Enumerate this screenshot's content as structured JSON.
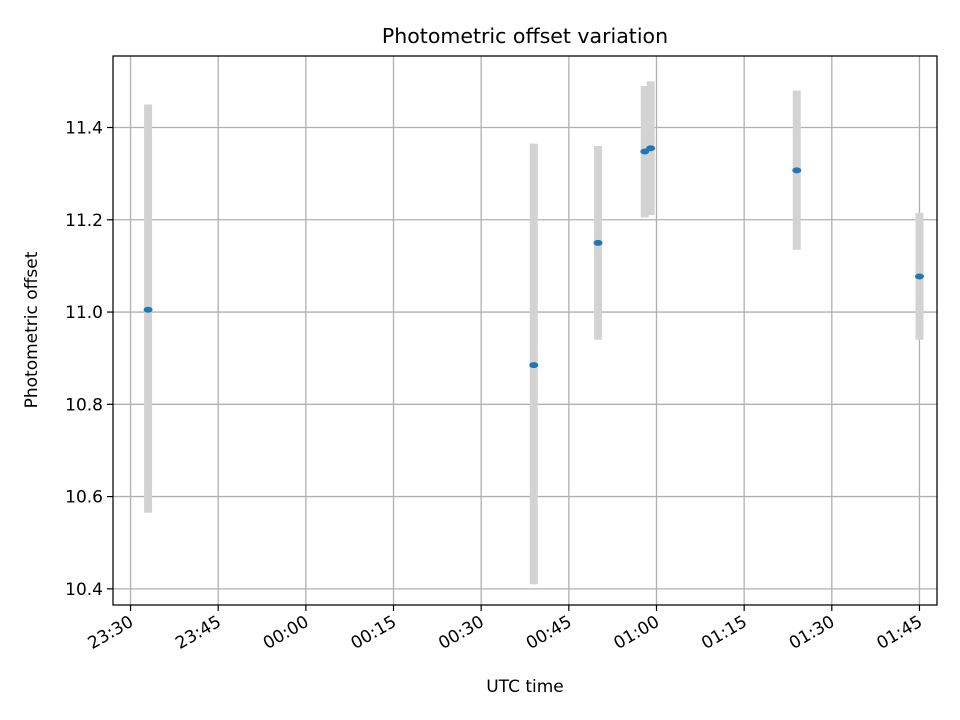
{
  "chart_data": {
    "type": "scatter",
    "title": "Photometric offset variation",
    "xlabel": "UTC time",
    "ylabel": "Photometric offset",
    "x_axis": "time",
    "xlim": [
      "23:27",
      "01:48"
    ],
    "ylim": [
      10.365,
      11.555
    ],
    "x_ticks": [
      "23:30",
      "23:45",
      "00:00",
      "00:15",
      "00:30",
      "00:45",
      "01:00",
      "01:15",
      "01:30",
      "01:45"
    ],
    "y_ticks": [
      10.4,
      10.6,
      10.8,
      11.0,
      11.2,
      11.4
    ],
    "y_tick_labels": [
      "10.4",
      "10.6",
      "10.8",
      "11.0",
      "11.2",
      "11.4"
    ],
    "grid": true,
    "colors": {
      "point": "#1f77b4",
      "errorbar": "#d3d3d3",
      "grid": "#b0b0b0"
    },
    "points": [
      {
        "x": "23:33",
        "y": 11.005,
        "ymin": 10.565,
        "ymax": 11.45
      },
      {
        "x": "00:39",
        "y": 10.885,
        "ymin": 10.41,
        "ymax": 11.365
      },
      {
        "x": "00:50",
        "y": 11.15,
        "ymin": 10.94,
        "ymax": 11.36
      },
      {
        "x": "00:58",
        "y": 11.348,
        "ymin": 11.205,
        "ymax": 11.49
      },
      {
        "x": "00:59",
        "y": 11.355,
        "ymin": 11.21,
        "ymax": 11.5
      },
      {
        "x": "01:24",
        "y": 11.307,
        "ymin": 11.135,
        "ymax": 11.48
      },
      {
        "x": "01:45",
        "y": 11.077,
        "ymin": 10.94,
        "ymax": 11.215
      }
    ]
  }
}
